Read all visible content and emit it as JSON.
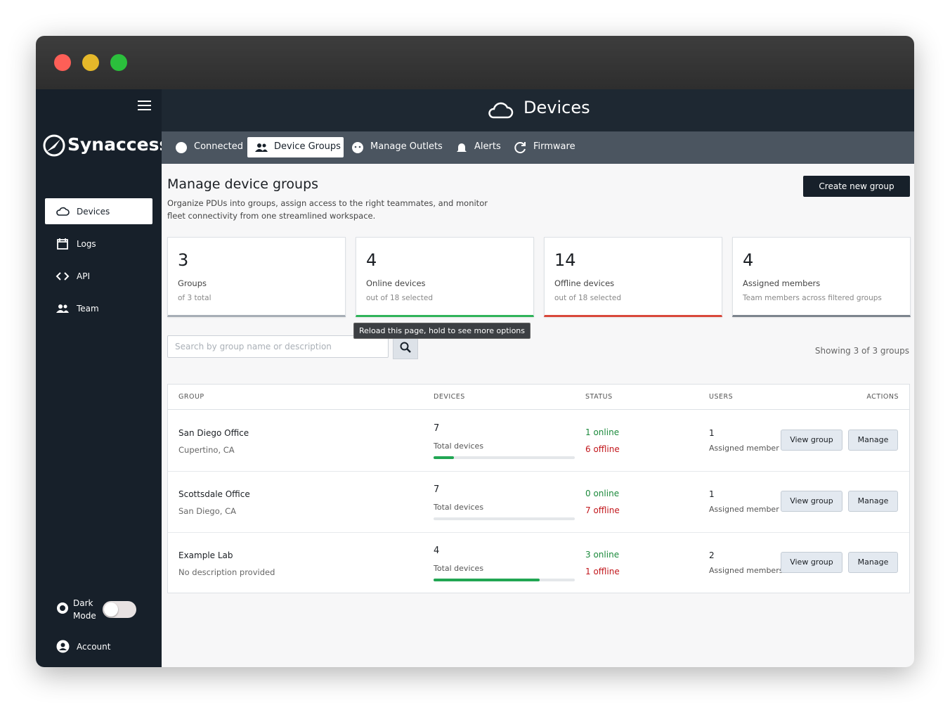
{
  "header_title": "Devices",
  "sidebar": {
    "brand": "Synaccess",
    "items": [
      "Devices",
      "Logs",
      "API",
      "Team"
    ],
    "dark_mode": "Dark Mode",
    "account": "Account"
  },
  "tabs": [
    "Connected",
    "Device Groups",
    "Manage Outlets",
    "Alerts",
    "Firmware"
  ],
  "page": {
    "title": "Manage device groups",
    "description": "Organize PDUs into groups, assign access to the right teammates, and monitor fleet connectivity from one streamlined workspace.",
    "create_button": "Create new group"
  },
  "stats": [
    {
      "value": 3,
      "label": "Groups",
      "sub": "of 3 total",
      "color": "#a7aeb6"
    },
    {
      "value": 4,
      "label": "Online devices",
      "sub": "out of 18 selected",
      "color": "#2fb35a"
    },
    {
      "value": 14,
      "label": "Offline devices",
      "sub": "out of 18 selected",
      "color": "#d9483b"
    },
    {
      "value": 4,
      "label": "Assigned members",
      "sub": "Team members across filtered groups",
      "color": "#7c848d"
    }
  ],
  "tooltip": "Reload this page, hold to see more options",
  "search": {
    "placeholder": "Search by group name or description",
    "showing": "Showing 3 of 3 groups"
  },
  "table": {
    "columns": [
      "GROUP",
      "DEVICES",
      "STATUS",
      "USERS",
      "ACTIONS"
    ],
    "devices_caption": "Total devices",
    "status_words": {
      "online": "online",
      "offline": "offline"
    },
    "actions": [
      "View group",
      "Manage"
    ],
    "rows": [
      {
        "name": "San Diego Office",
        "location": "Cupertino, CA",
        "devices": 7,
        "online": 1,
        "offline": 6,
        "users": 1,
        "users_caption": "Assigned member"
      },
      {
        "name": "Scottsdale Office",
        "location": "San Diego, CA",
        "devices": 7,
        "online": 0,
        "offline": 7,
        "users": 1,
        "users_caption": "Assigned member"
      },
      {
        "name": "Example Lab",
        "location": "No description provided",
        "devices": 4,
        "online": 3,
        "offline": 1,
        "users": 2,
        "users_caption": "Assigned members"
      }
    ]
  }
}
